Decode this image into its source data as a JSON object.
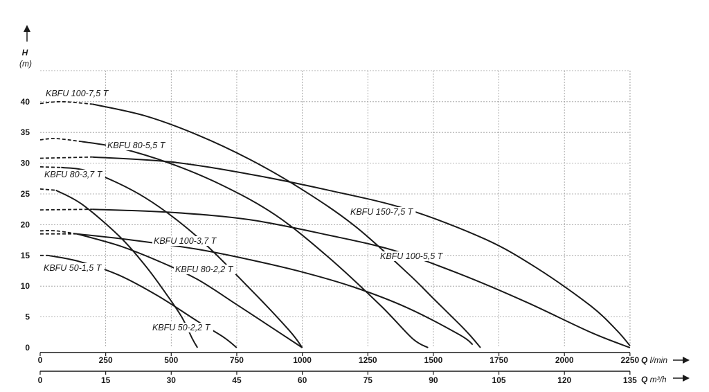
{
  "chart_data": {
    "type": "line",
    "y_axis": {
      "symbol": "H",
      "unit": "(m)",
      "range": [
        0,
        45
      ],
      "ticks": [
        0,
        5,
        10,
        15,
        20,
        25,
        30,
        35,
        40
      ]
    },
    "x_axis_primary": {
      "symbol": "Q",
      "unit": "l/min",
      "range": [
        0,
        2400
      ],
      "ticks": [
        0,
        250,
        500,
        750,
        1000,
        1250,
        1500,
        1750,
        2000,
        2250
      ]
    },
    "x_axis_secondary": {
      "symbol": "Q",
      "unit": "m³/h",
      "range": [
        0,
        144
      ],
      "ticks": [
        0,
        15,
        30,
        45,
        60,
        75,
        90,
        105,
        120,
        135
      ]
    },
    "grid": true,
    "series": [
      {
        "name": "KBFU 100-7,5 T",
        "dashed_until": 200,
        "points": [
          [
            0,
            39.7
          ],
          [
            80,
            40
          ],
          [
            200,
            39.6
          ],
          [
            400,
            37.7
          ],
          [
            600,
            34.6
          ],
          [
            800,
            30.6
          ],
          [
            1000,
            25.7
          ],
          [
            1200,
            19.8
          ],
          [
            1400,
            12.2
          ],
          [
            1500,
            8
          ],
          [
            1600,
            3.8
          ],
          [
            1640,
            2
          ],
          [
            1680,
            0
          ]
        ]
      },
      {
        "name": "KBFU 80-5,5 T",
        "dashed_until": 160,
        "points": [
          [
            0,
            33.8
          ],
          [
            60,
            34
          ],
          [
            160,
            33.5
          ],
          [
            300,
            32.5
          ],
          [
            500,
            29.9
          ],
          [
            700,
            26.3
          ],
          [
            900,
            21.5
          ],
          [
            1100,
            14.7
          ],
          [
            1300,
            6.8
          ],
          [
            1420,
            1.5
          ],
          [
            1480,
            0
          ]
        ]
      },
      {
        "name": "KBFU 150-7,5 T",
        "dashed_until": 200,
        "points": [
          [
            0,
            30.8
          ],
          [
            200,
            31
          ],
          [
            500,
            30.2
          ],
          [
            800,
            28.2
          ],
          [
            1100,
            25.6
          ],
          [
            1400,
            22.5
          ],
          [
            1700,
            17.6
          ],
          [
            1900,
            12.8
          ],
          [
            2100,
            6.8
          ],
          [
            2200,
            2.8
          ],
          [
            2250,
            0.3
          ]
        ]
      },
      {
        "name": "KBFU 80-3,7 T",
        "dashed_until": 80,
        "points": [
          [
            0,
            29.4
          ],
          [
            80,
            29.3
          ],
          [
            200,
            28.5
          ],
          [
            400,
            24.4
          ],
          [
            600,
            18
          ],
          [
            800,
            9.6
          ],
          [
            950,
            2.8
          ],
          [
            1000,
            0
          ]
        ]
      },
      {
        "name": "KBFU 80-2,2 T",
        "dashed_until": 140,
        "points": [
          [
            0,
            19
          ],
          [
            60,
            19
          ],
          [
            140,
            18.5
          ],
          [
            300,
            16.6
          ],
          [
            450,
            14.1
          ],
          [
            600,
            11.1
          ],
          [
            750,
            7
          ],
          [
            900,
            2.8
          ],
          [
            1000,
            0
          ]
        ]
      },
      {
        "name": "KBFU 100-5,5 T",
        "dashed_until": 200,
        "points": [
          [
            0,
            22.4
          ],
          [
            200,
            22.5
          ],
          [
            500,
            22
          ],
          [
            800,
            20.8
          ],
          [
            1100,
            18.3
          ],
          [
            1350,
            15.8
          ],
          [
            1600,
            12
          ],
          [
            1850,
            7.5
          ],
          [
            2100,
            2.5
          ],
          [
            2250,
            0
          ]
        ]
      },
      {
        "name": "KBFU 100-3,7 T",
        "dashed_until": 140,
        "points": [
          [
            0,
            18.5
          ],
          [
            140,
            18.5
          ],
          [
            350,
            17.5
          ],
          [
            600,
            16
          ],
          [
            800,
            14.3
          ],
          [
            1000,
            12.3
          ],
          [
            1200,
            9.8
          ],
          [
            1400,
            6.5
          ],
          [
            1600,
            2.1
          ],
          [
            1650,
            0.5
          ]
        ]
      },
      {
        "name": "KBFU 50-2,2 T",
        "dashed_until": 60,
        "points": [
          [
            0,
            25.8
          ],
          [
            60,
            25.6
          ],
          [
            160,
            23.3
          ],
          [
            300,
            18.2
          ],
          [
            400,
            13.4
          ],
          [
            480,
            8.8
          ],
          [
            540,
            5
          ],
          [
            580,
            1.5
          ],
          [
            600,
            0
          ]
        ]
      },
      {
        "name": "KBFU 50-1,5 T",
        "dashed_until": 30,
        "points": [
          [
            0,
            15
          ],
          [
            30,
            15
          ],
          [
            150,
            14
          ],
          [
            300,
            11.8
          ],
          [
            450,
            8.4
          ],
          [
            600,
            4.3
          ],
          [
            700,
            1.7
          ],
          [
            750,
            0
          ]
        ]
      }
    ]
  }
}
